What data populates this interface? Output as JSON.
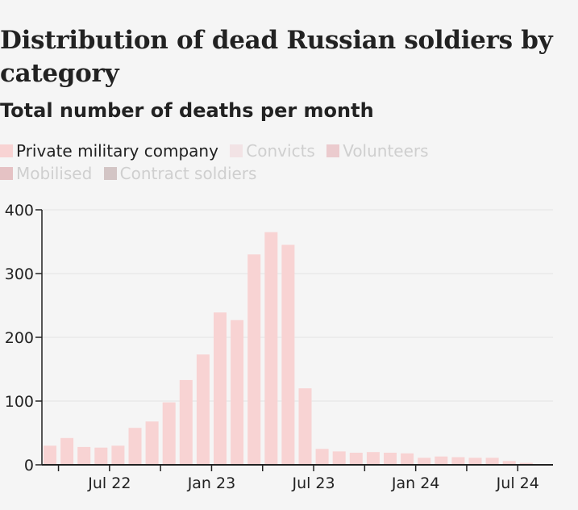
{
  "chart_data": {
    "type": "bar",
    "title": "Distribution of dead Russian soldiers by category",
    "subtitle": "Total number of deaths per month",
    "legend": [
      {
        "label": "Private military company",
        "color": "#f8d3d3",
        "active": true
      },
      {
        "label": "Convicts",
        "color": "#f2e3e5",
        "active": false
      },
      {
        "label": "Volunteers",
        "color": "#ebcbce",
        "active": false
      },
      {
        "label": "Mobilised",
        "color": "#e5c2c4",
        "active": false
      },
      {
        "label": "Contract soldiers",
        "color": "#d3c5c5",
        "active": false
      }
    ],
    "legend_placement": "top",
    "series": [
      {
        "name": "Private military company",
        "color": "#f8d3d3",
        "categories": [
          "2022-03",
          "2022-04",
          "2022-05",
          "2022-06",
          "2022-07",
          "2022-08",
          "2022-09",
          "2022-10",
          "2022-11",
          "2022-12",
          "2023-01",
          "2023-02",
          "2023-03",
          "2023-04",
          "2023-05",
          "2023-06",
          "2023-07",
          "2023-08",
          "2023-09",
          "2023-10",
          "2023-11",
          "2023-12",
          "2024-01",
          "2024-02",
          "2024-03",
          "2024-04",
          "2024-05",
          "2024-06",
          "2024-07"
        ],
        "values": [
          30,
          42,
          28,
          27,
          30,
          58,
          68,
          98,
          133,
          173,
          239,
          227,
          330,
          365,
          345,
          120,
          25,
          21,
          19,
          20,
          19,
          18,
          11,
          13,
          12,
          11,
          11,
          6,
          3
        ]
      }
    ],
    "ylim": [
      0,
      400
    ],
    "yticks": [
      "0",
      "100",
      "200",
      "300",
      "400"
    ],
    "ytick_values": [
      0,
      100,
      200,
      300,
      400
    ],
    "xticks": [
      "Jul 22",
      "Jan 23",
      "Jul 23",
      "Jan 24",
      "Jul 24"
    ],
    "xtick_months": [
      "2022-07",
      "2023-01",
      "2023-07",
      "2024-01",
      "2024-07"
    ],
    "grid": true
  }
}
